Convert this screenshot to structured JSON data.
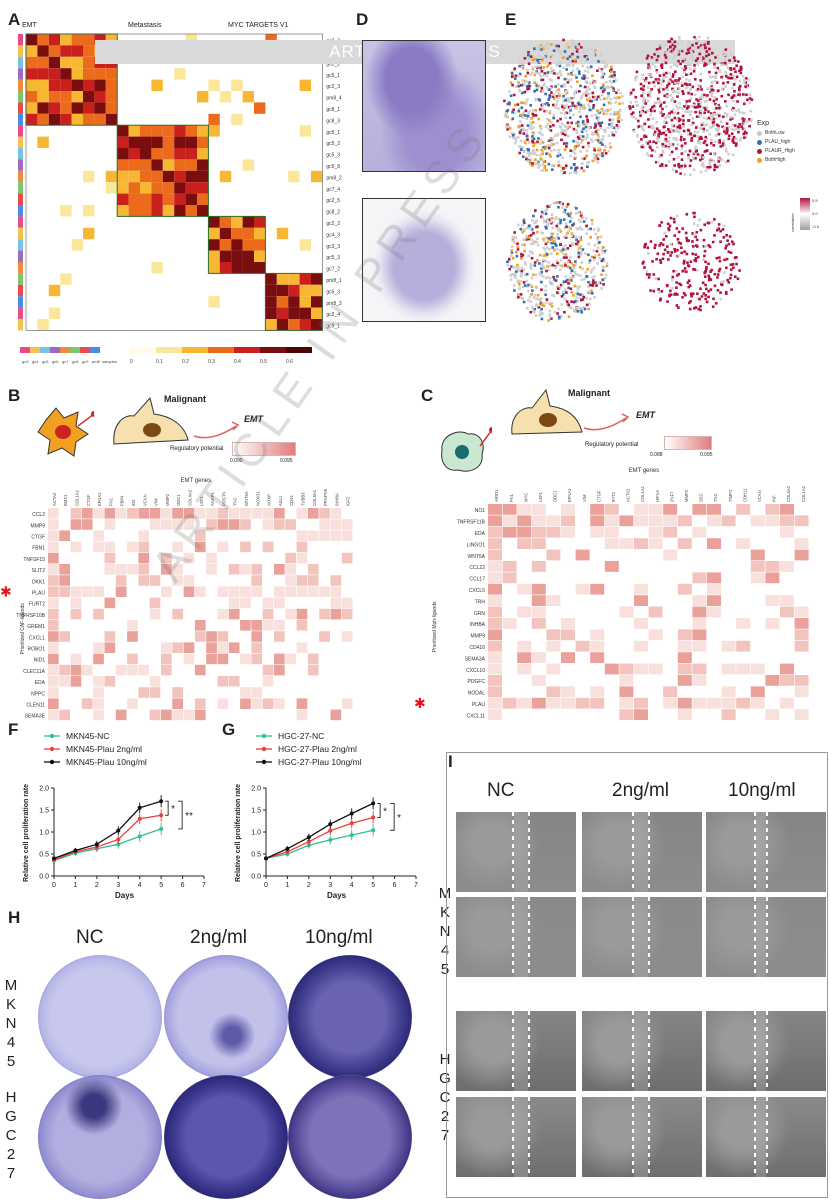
{
  "banner": "ARTICLE IN PRESS",
  "watermark": "ARTICLE IN PRESS",
  "panels": {
    "A": "A",
    "B": "B",
    "C": "C",
    "D": "D",
    "E": "E",
    "F": "F",
    "G": "G",
    "H": "H",
    "I": "I"
  },
  "panelA": {
    "top_labels": [
      "EMT",
      "Metastasis",
      "MYC TARGETS V1"
    ],
    "row_labels": [
      "gc2_3",
      "gc5_4",
      "gc2_1",
      "gc5_1",
      "gc2_3",
      "pm8_4",
      "gc8_1",
      "gc8_3",
      "gc5_1",
      "gc5_2",
      "gc5_3",
      "gc5_8",
      "pm8_2",
      "gc7_4",
      "gc2_5",
      "gc8_2",
      "gc2_2",
      "gc4_3",
      "gc3_3",
      "gc5_3",
      "gc7_2",
      "pm8_1",
      "gc5_3",
      "pm8_3",
      "gc2_4",
      "gc9_1"
    ],
    "legend_samples": [
      "gc3",
      "gc4",
      "gc5",
      "gc6",
      "gc7",
      "gc8",
      "gc9",
      "pm8",
      "samples"
    ],
    "scale_ticks": [
      "0",
      "0.1",
      "0.2",
      "0.3",
      "0.4",
      "0.5",
      "0.6"
    ]
  },
  "panelE": {
    "legend_title": "Exp",
    "legend_items": [
      "BothLow",
      "PLAU_high",
      "PLAUR_High",
      "BothHigh"
    ],
    "legend_colors": [
      "#c8c8c8",
      "#2b72b8",
      "#b3123f",
      "#f2a11c"
    ],
    "corr_label": "correlation",
    "corr_ticks": [
      "0.5",
      "0.0",
      "-0.5"
    ]
  },
  "panelB": {
    "title": "Malignant",
    "arrow_label": "EMT",
    "legend_title": "Regulatory potential",
    "legend_min": "0.090",
    "legend_max": "0.095",
    "x_title": "EMT genes",
    "y_title": "Prioritized CAF-ligands",
    "cols": [
      "ACTA2",
      "BMX1",
      "COL1A1",
      "CTGF",
      "EFNA1",
      "FN1",
      "FBP4",
      "ID4",
      "VCAN",
      "VIM",
      "MMP2",
      "ODC1",
      "COL4A2",
      "LEF1",
      "ANKP1",
      "POSTN",
      "TNC",
      "WNT5A",
      "NOXO1",
      "NOXP",
      "ASL1",
      "CD44",
      "TUBB3",
      "COL5A1",
      "PRNPNK",
      "INHBA",
      "IGF2"
    ],
    "rows": [
      "CCL2",
      "MMP9",
      "CTGF",
      "FBN1",
      "TNFSF15",
      "SLIT2",
      "DKK1",
      "PLAU",
      "FURT2",
      "TNFRSF10B",
      "GREM1",
      "CXCL1",
      "ROBO1",
      "NID1",
      "CLEC11A",
      "EDA",
      "NPPC",
      "CLEN11",
      "SEMA3E"
    ],
    "highlight_row": "PLAU"
  },
  "panelC": {
    "title": "Malignant",
    "arrow_label": "EMT",
    "legend_title": "Regulatory potential",
    "legend_min": "0.088",
    "legend_max": "0.095",
    "x_title": "EMT genes",
    "y_title": "Prioritized Mph-ligands",
    "cols": [
      "ARID1",
      "FN1",
      "MYC",
      "LEF1",
      "ODC1",
      "EFNA1",
      "VIM",
      "CTGF",
      "IFIT2",
      "ACTA2",
      "COL1A1",
      "HIF1A",
      "ZNF7",
      "MMP2",
      "SSC",
      "TNC",
      "TIMP1",
      "CDH11",
      "VCAN",
      "INF",
      "COL5A2",
      "COL1A1"
    ],
    "rows": [
      "NO1",
      "TNFRSF11B",
      "EDA",
      "LINGO1",
      "WNT5A",
      "CCL22",
      "CCL17",
      "CXCL5",
      "TRH",
      "GRN",
      "INHBA",
      "MMP9",
      "CD416",
      "SEMA3A",
      "CXCL10",
      "PDGFC",
      "NODAL",
      "PLAU",
      "CXCL11"
    ],
    "highlight_row": "PLAU"
  },
  "chart_data": [
    {
      "panel": "F",
      "type": "line",
      "xlabel": "Days",
      "ylabel": "Relative cell proliferation rate",
      "xlim": [
        0,
        7
      ],
      "ylim": [
        0,
        2
      ],
      "x_ticks": [
        "0",
        "1",
        "2",
        "3",
        "4",
        "5",
        "6",
        "7"
      ],
      "y_ticks": [
        "0.0",
        "0.5",
        "1.0",
        "1.5",
        "2.0"
      ],
      "x": [
        0,
        1,
        2,
        3,
        4,
        5
      ],
      "series": [
        {
          "name": "MKN45-NC",
          "color": "#2ec08f",
          "values": [
            0.35,
            0.52,
            0.62,
            0.72,
            0.9,
            1.07
          ]
        },
        {
          "name": "MKN45-Plau 2ng/ml",
          "color": "#ee3e3e",
          "values": [
            0.37,
            0.55,
            0.66,
            0.83,
            1.3,
            1.38
          ]
        },
        {
          "name": "MKN45-Plau 10ng/ml",
          "color": "#111111",
          "values": [
            0.4,
            0.58,
            0.72,
            1.03,
            1.55,
            1.7
          ]
        }
      ],
      "significance": [
        "*",
        "**"
      ]
    },
    {
      "panel": "G",
      "type": "line",
      "xlabel": "Days",
      "ylabel": "Relative cell proliferation rate",
      "xlim": [
        0,
        7
      ],
      "ylim": [
        0,
        2
      ],
      "x_ticks": [
        "0",
        "1",
        "2",
        "3",
        "4",
        "5",
        "6",
        "7"
      ],
      "y_ticks": [
        "0.0",
        "0.5",
        "1.0",
        "1.5",
        "2.0"
      ],
      "x": [
        0,
        1,
        2,
        3,
        4,
        5
      ],
      "series": [
        {
          "name": "HGC-27-NC",
          "color": "#2ec08f",
          "values": [
            0.4,
            0.5,
            0.7,
            0.82,
            0.93,
            1.04
          ]
        },
        {
          "name": "HGC-27-Plau 2ng/ml",
          "color": "#ee3e3e",
          "values": [
            0.4,
            0.55,
            0.78,
            1.03,
            1.2,
            1.33
          ]
        },
        {
          "name": "HGC-27-Plau 10ng/ml",
          "color": "#111111",
          "values": [
            0.4,
            0.62,
            0.88,
            1.18,
            1.42,
            1.65
          ]
        }
      ],
      "significance": [
        "*",
        "*"
      ]
    }
  ],
  "panelH": {
    "cols": [
      "NC",
      "2ng/ml",
      "10ng/ml"
    ],
    "row1_letters": [
      "M",
      "K",
      "N",
      "4",
      "5"
    ],
    "row2_letters": [
      "H",
      "G",
      "C",
      "2",
      "7"
    ]
  },
  "panelI": {
    "cols": [
      "NC",
      "2ng/ml",
      "10ng/ml"
    ],
    "row1_letters": [
      "M",
      "K",
      "N",
      "4",
      "5"
    ],
    "row2_letters": [
      "H",
      "G",
      "C",
      "2",
      "7"
    ]
  }
}
